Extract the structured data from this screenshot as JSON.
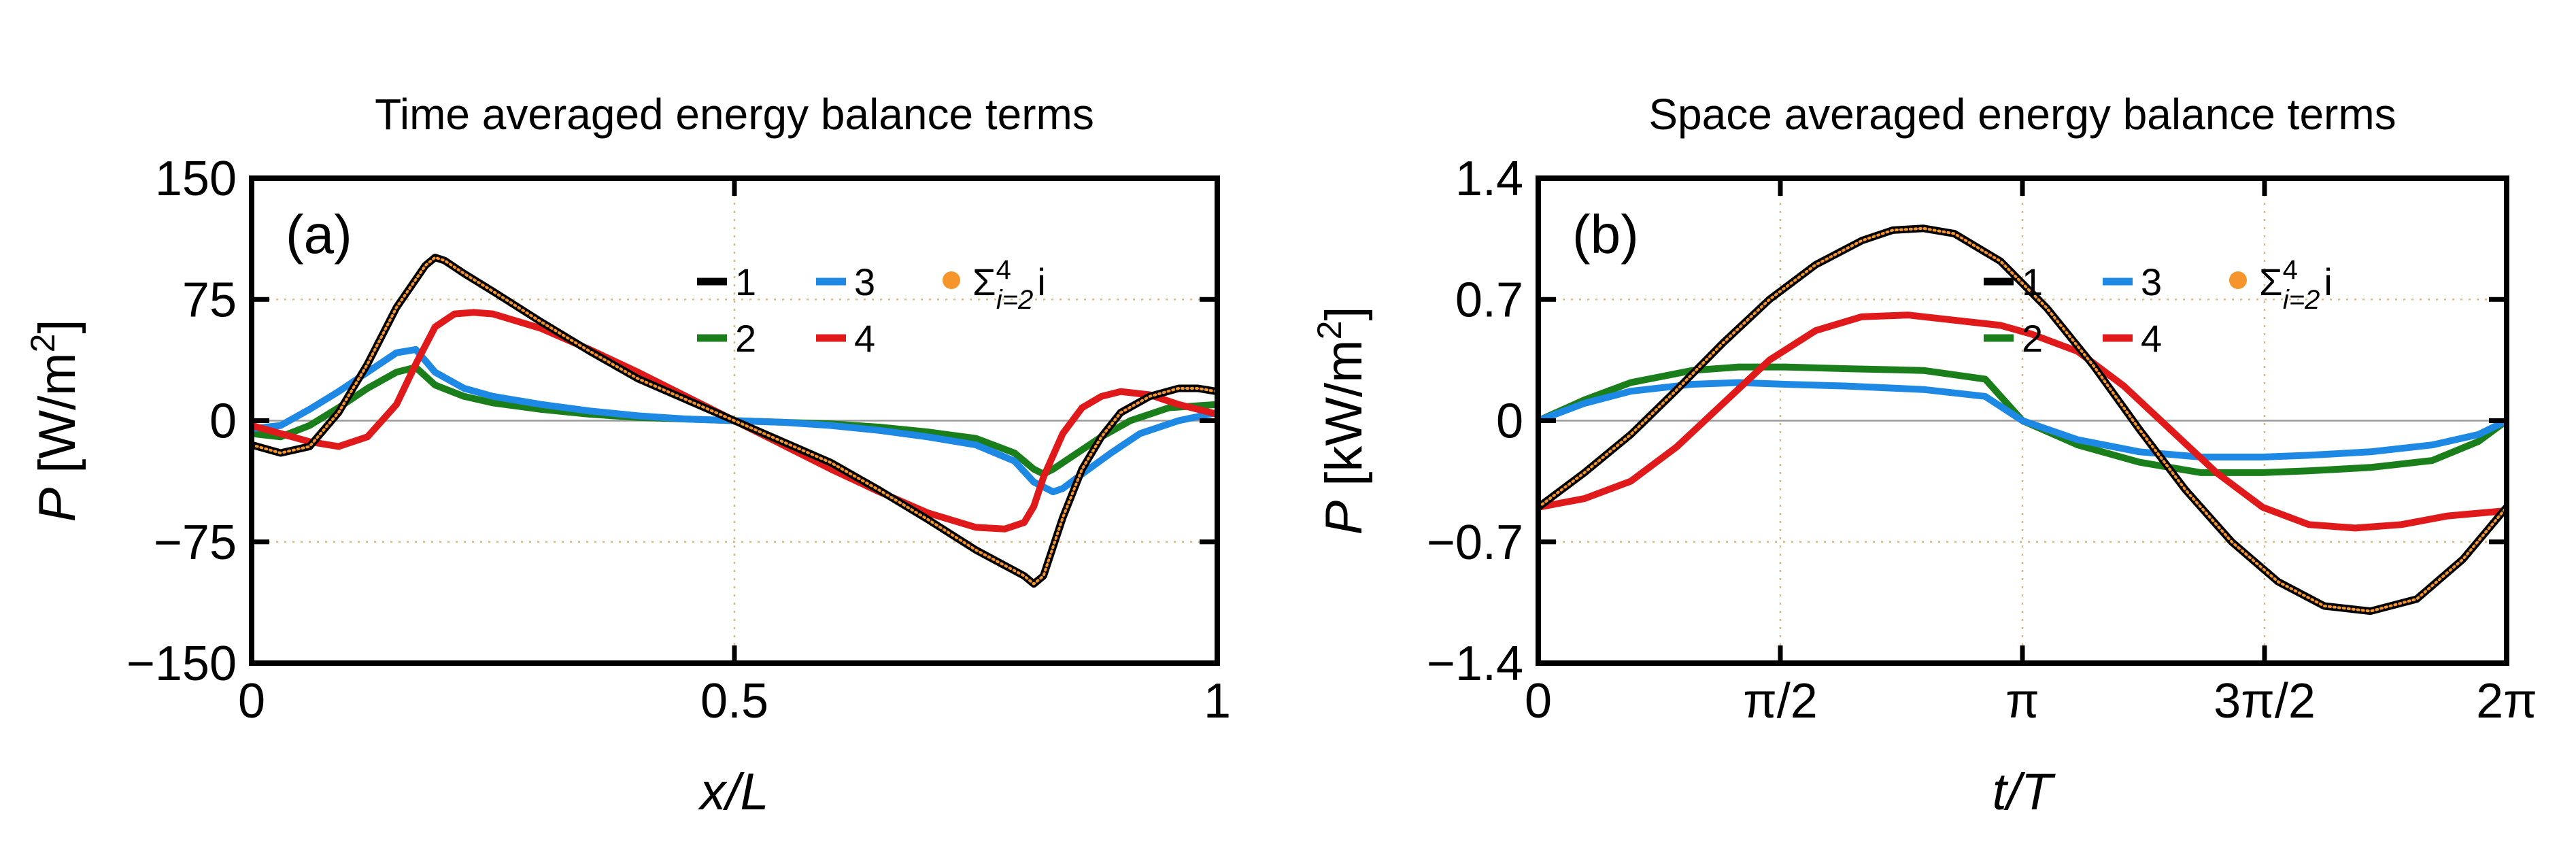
{
  "chart_data": [
    {
      "type": "line",
      "panel_label": "(a)",
      "title": "Time averaged energy balance terms",
      "xlabel_var": "x/L",
      "ylabel_var": "P",
      "ylabel_unit_pre": " [W/m",
      "ylabel_unit_exp": "2",
      "ylabel_unit_post": "]",
      "xlim": [
        0,
        1
      ],
      "ylim": [
        -150,
        150
      ],
      "xticks": [
        0,
        0.5,
        1
      ],
      "xtick_labels": [
        "0",
        "0.5",
        "1"
      ],
      "yticks": [
        -150,
        -75,
        0,
        75,
        150
      ],
      "ytick_labels": [
        "−150",
        "−75",
        "0",
        "75",
        "150"
      ],
      "gridlines_y": [
        -75,
        75
      ],
      "gridlines_x": [
        0.5
      ],
      "zero_line": true,
      "legend_position": "upper-right",
      "series": [
        {
          "name": "1",
          "color": "#000000",
          "marker": "line",
          "x": [
            0,
            0.03,
            0.06,
            0.09,
            0.12,
            0.15,
            0.18,
            0.19,
            0.2,
            0.22,
            0.25,
            0.3,
            0.35,
            0.4,
            0.45,
            0.5,
            0.55,
            0.6,
            0.65,
            0.7,
            0.75,
            0.8,
            0.81,
            0.82,
            0.84,
            0.86,
            0.88,
            0.9,
            0.93,
            0.96,
            0.98,
            1.0
          ],
          "y": [
            -15,
            -20,
            -16,
            5,
            35,
            70,
            96,
            101,
            99,
            91,
            80,
            61,
            43,
            26,
            13,
            0,
            -13,
            -26,
            -43,
            -61,
            -80,
            -96,
            -101,
            -96,
            -60,
            -30,
            -10,
            5,
            15,
            20,
            20,
            18
          ]
        },
        {
          "name": "2",
          "color": "#1a7f1a",
          "marker": "line",
          "x": [
            0,
            0.03,
            0.06,
            0.09,
            0.12,
            0.15,
            0.17,
            0.19,
            0.22,
            0.25,
            0.3,
            0.35,
            0.4,
            0.45,
            0.5,
            0.55,
            0.6,
            0.65,
            0.7,
            0.75,
            0.79,
            0.81,
            0.82,
            0.83,
            0.85,
            0.88,
            0.91,
            0.95,
            1.0
          ],
          "y": [
            -8,
            -10,
            -3,
            8,
            20,
            30,
            33,
            22,
            15,
            11,
            7,
            4,
            2,
            1,
            0,
            -1,
            -2,
            -4,
            -7,
            -11,
            -20,
            -30,
            -33,
            -30,
            -22,
            -10,
            0,
            8,
            10
          ]
        },
        {
          "name": "3",
          "color": "#1e88e5",
          "marker": "line",
          "x": [
            0,
            0.03,
            0.06,
            0.09,
            0.12,
            0.15,
            0.17,
            0.19,
            0.22,
            0.25,
            0.3,
            0.35,
            0.4,
            0.45,
            0.5,
            0.55,
            0.6,
            0.65,
            0.7,
            0.75,
            0.79,
            0.81,
            0.83,
            0.84,
            0.86,
            0.89,
            0.92,
            0.96,
            1.0
          ],
          "y": [
            -5,
            -3,
            7,
            18,
            30,
            42,
            44,
            30,
            20,
            15,
            10,
            6,
            3,
            1,
            0,
            -1,
            -3,
            -6,
            -10,
            -15,
            -25,
            -38,
            -44,
            -42,
            -33,
            -20,
            -8,
            0,
            5
          ]
        },
        {
          "name": "4",
          "color": "#e01a1a",
          "marker": "line",
          "x": [
            0,
            0.03,
            0.06,
            0.09,
            0.12,
            0.15,
            0.17,
            0.19,
            0.21,
            0.23,
            0.25,
            0.3,
            0.35,
            0.4,
            0.45,
            0.5,
            0.55,
            0.6,
            0.65,
            0.7,
            0.75,
            0.78,
            0.8,
            0.81,
            0.82,
            0.84,
            0.86,
            0.88,
            0.9,
            0.93,
            0.96,
            1.0
          ],
          "y": [
            -3,
            -8,
            -13,
            -16,
            -10,
            10,
            35,
            58,
            66,
            67,
            66,
            57,
            44,
            30,
            15,
            0,
            -15,
            -30,
            -44,
            -57,
            -66,
            -67,
            -63,
            -53,
            -35,
            -8,
            8,
            15,
            18,
            16,
            10,
            4
          ]
        },
        {
          "name": "Σᵢ₌₂⁴ i",
          "legend_sigma": "Σ",
          "legend_sup": "4",
          "legend_sub": "i=2",
          "legend_var": "i",
          "color": "#f5952b",
          "marker": "dots",
          "same_as": "1"
        }
      ],
      "legend_entries": [
        "1",
        "3",
        "2",
        "4"
      ]
    },
    {
      "type": "line",
      "panel_label": "(b)",
      "title": "Space averaged energy balance terms",
      "xlabel_var": "t/T",
      "ylabel_var": "P",
      "ylabel_unit_pre": " [kW/m",
      "ylabel_unit_exp": "2",
      "ylabel_unit_post": "]",
      "xlim": [
        0,
        6.2832
      ],
      "ylim": [
        -1.4,
        1.4
      ],
      "xticks": [
        0,
        1.5708,
        3.1416,
        4.7124,
        6.2832
      ],
      "xtick_labels": [
        "0",
        "π/2",
        "π",
        "3π/2",
        "2π"
      ],
      "yticks": [
        -1.4,
        -0.7,
        0,
        0.7,
        1.4
      ],
      "ytick_labels": [
        "−1.4",
        "−0.7",
        "0",
        "0.7",
        "1.4"
      ],
      "gridlines_y": [
        -0.7,
        0.7
      ],
      "gridlines_x": [
        1.5708,
        3.1416,
        4.7124
      ],
      "zero_line": true,
      "legend_position": "upper-right",
      "series": [
        {
          "name": "1",
          "color": "#000000",
          "marker": "line",
          "x": [
            0,
            0.3,
            0.6,
            0.9,
            1.2,
            1.5,
            1.8,
            2.1,
            2.3,
            2.5,
            2.7,
            3.0,
            3.3,
            3.6,
            3.9,
            4.2,
            4.5,
            4.8,
            5.1,
            5.4,
            5.7,
            6.0,
            6.2832
          ],
          "y": [
            -0.5,
            -0.3,
            -0.08,
            0.18,
            0.45,
            0.7,
            0.9,
            1.04,
            1.1,
            1.11,
            1.08,
            0.92,
            0.65,
            0.32,
            -0.05,
            -0.4,
            -0.7,
            -0.93,
            -1.07,
            -1.1,
            -1.03,
            -0.8,
            -0.5
          ]
        },
        {
          "name": "2",
          "color": "#1a7f1a",
          "marker": "line",
          "x": [
            0,
            0.3,
            0.6,
            1.0,
            1.3,
            1.6,
            2.0,
            2.5,
            2.9,
            3.1416,
            3.5,
            3.9,
            4.3,
            4.7,
            5.0,
            5.4,
            5.8,
            6.1,
            6.2832
          ],
          "y": [
            0,
            0.12,
            0.22,
            0.29,
            0.31,
            0.31,
            0.3,
            0.29,
            0.24,
            0.0,
            -0.14,
            -0.24,
            -0.3,
            -0.3,
            -0.29,
            -0.27,
            -0.23,
            -0.12,
            0.0
          ]
        },
        {
          "name": "3",
          "color": "#1e88e5",
          "marker": "line",
          "x": [
            0,
            0.3,
            0.6,
            1.0,
            1.3,
            1.6,
            2.0,
            2.5,
            2.9,
            3.1416,
            3.5,
            3.9,
            4.3,
            4.7,
            5.0,
            5.4,
            5.8,
            6.1,
            6.2832
          ],
          "y": [
            0,
            0.1,
            0.17,
            0.21,
            0.22,
            0.21,
            0.2,
            0.18,
            0.14,
            0.0,
            -0.11,
            -0.18,
            -0.21,
            -0.21,
            -0.2,
            -0.18,
            -0.14,
            -0.08,
            0.0
          ]
        },
        {
          "name": "4",
          "color": "#e01a1a",
          "marker": "line",
          "x": [
            0,
            0.3,
            0.6,
            0.9,
            1.2,
            1.5,
            1.8,
            2.1,
            2.4,
            2.7,
            3.0,
            3.2,
            3.5,
            3.8,
            4.1,
            4.4,
            4.7,
            5.0,
            5.3,
            5.6,
            5.9,
            6.2832
          ],
          "y": [
            -0.5,
            -0.45,
            -0.35,
            -0.15,
            0.1,
            0.35,
            0.52,
            0.6,
            0.61,
            0.58,
            0.55,
            0.5,
            0.4,
            0.2,
            -0.05,
            -0.3,
            -0.5,
            -0.6,
            -0.62,
            -0.6,
            -0.55,
            -0.52
          ]
        },
        {
          "name": "Σᵢ₌₂⁴ i",
          "legend_sigma": "Σ",
          "legend_sup": "4",
          "legend_sub": "i=2",
          "legend_var": "i",
          "color": "#f5952b",
          "marker": "dots",
          "same_as": "1"
        }
      ],
      "legend_entries": [
        "1",
        "3",
        "2",
        "4"
      ]
    }
  ]
}
